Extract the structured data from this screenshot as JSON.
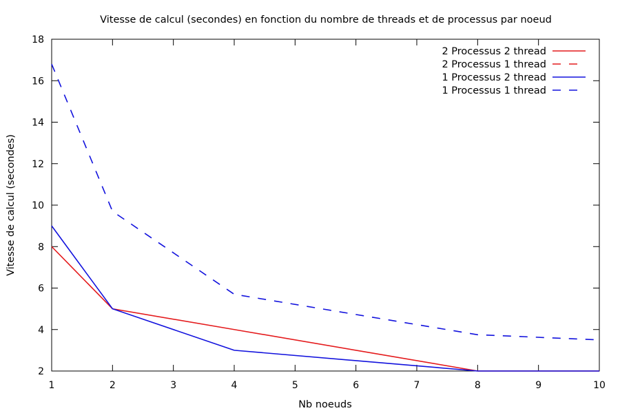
{
  "chart_data": {
    "type": "line",
    "title": "Vitesse de calcul (secondes) en fonction du nombre de threads et de processus par noeud",
    "xlabel": "Nb noeuds",
    "ylabel": "Vitesse de calcul (secondes)",
    "xlim": [
      1,
      10
    ],
    "ylim": [
      2,
      18
    ],
    "xticks": [
      1,
      2,
      3,
      4,
      5,
      6,
      7,
      8,
      9,
      10
    ],
    "yticks": [
      2,
      4,
      6,
      8,
      10,
      12,
      14,
      16,
      18
    ],
    "grid": false,
    "legend_position": "top-right",
    "series": [
      {
        "name": "2 Processus 2 thread",
        "color": "#e41a1c",
        "dash": "solid",
        "x": [
          1,
          2,
          4,
          8,
          10
        ],
        "y": [
          8,
          5,
          4,
          2,
          2
        ]
      },
      {
        "name": "2 Processus 1 thread",
        "color": "#e41a1c",
        "dash": "dashed",
        "x": [],
        "y": []
      },
      {
        "name": "1 Processus 2 thread",
        "color": "#1111dd",
        "dash": "solid",
        "x": [
          1,
          2,
          4,
          8,
          10
        ],
        "y": [
          9,
          5,
          3,
          2,
          2
        ]
      },
      {
        "name": "1 Processus 1 thread",
        "color": "#1111dd",
        "dash": "dashed",
        "x": [
          1,
          2,
          4,
          8,
          10
        ],
        "y": [
          16.8,
          9.7,
          5.7,
          3.75,
          3.5
        ]
      }
    ]
  }
}
